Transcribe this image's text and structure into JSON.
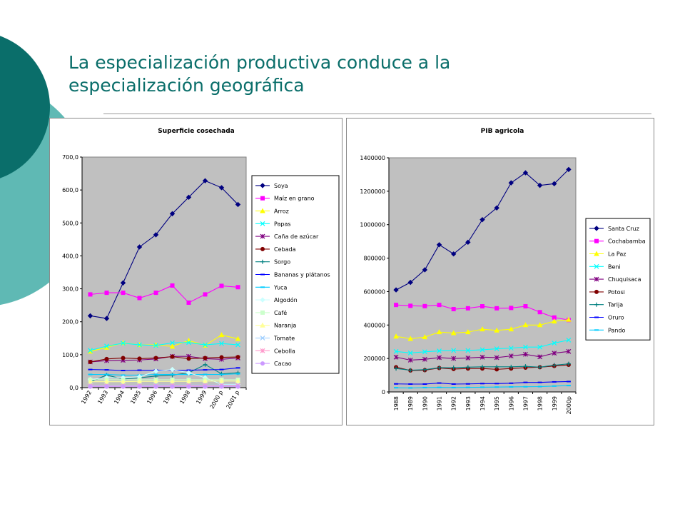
{
  "slide": {
    "title_line1": "La especialización productiva conduce a la",
    "title_line2": "especialización geográfica",
    "accent_color": "#0a6e6a",
    "accent_light_color": "#5fb9b4"
  },
  "chart_data": [
    {
      "type": "line",
      "title": "Superficie cosechada",
      "xlabel": "",
      "ylabel": "",
      "categories": [
        "1992",
        "1993",
        "1994",
        "1995",
        "1996",
        "1997",
        "1998",
        "1999",
        "2000 p",
        "2001 p"
      ],
      "ylim": [
        0,
        700
      ],
      "yticks": [
        "0,0",
        "100,0",
        "200,0",
        "300,0",
        "400,0",
        "500,0",
        "600,0",
        "700,0"
      ],
      "plot_background": "#c0c0c0",
      "grid": false,
      "legend_position": "right",
      "series": [
        {
          "name": "Soya",
          "color": "#000080",
          "marker": "diamond",
          "values": [
            218,
            210,
            318,
            427,
            464,
            528,
            578,
            628,
            607,
            556
          ]
        },
        {
          "name": "Maíz en grano",
          "color": "#ff00ff",
          "marker": "square",
          "values": [
            283,
            288,
            288,
            272,
            288,
            310,
            258,
            283,
            309,
            305
          ]
        },
        {
          "name": "Arroz",
          "color": "#ffff00",
          "marker": "triangle",
          "values": [
            110,
            122,
            136,
            130,
            130,
            125,
            143,
            128,
            160,
            148
          ]
        },
        {
          "name": "Papas",
          "color": "#00ffff",
          "marker": "x",
          "values": [
            113,
            126,
            135,
            130,
            128,
            136,
            137,
            130,
            134,
            130
          ]
        },
        {
          "name": "Caña de azúcar",
          "color": "#800080",
          "marker": "star",
          "values": [
            78,
            82,
            83,
            84,
            87,
            95,
            95,
            88,
            86,
            90
          ]
        },
        {
          "name": "Cebada",
          "color": "#800000",
          "marker": "circle",
          "values": [
            78,
            87,
            90,
            88,
            90,
            94,
            88,
            90,
            92,
            93
          ]
        },
        {
          "name": "Sorgo",
          "color": "#008080",
          "marker": "plus",
          "values": [
            18,
            38,
            26,
            30,
            35,
            38,
            45,
            70,
            42,
            45
          ]
        },
        {
          "name": "Bananas y plátanos",
          "color": "#0000ff",
          "marker": "dash",
          "values": [
            55,
            54,
            52,
            53,
            53,
            53,
            53,
            54,
            55,
            60
          ]
        },
        {
          "name": "Yuca",
          "color": "#00ccff",
          "marker": "dash",
          "values": [
            40,
            40,
            38,
            38,
            40,
            40,
            40,
            40,
            40,
            42
          ]
        },
        {
          "name": "Algodón",
          "color": "#ccffff",
          "marker": "diamond",
          "values": [
            25,
            30,
            30,
            33,
            50,
            55,
            45,
            30,
            10,
            10
          ]
        },
        {
          "name": "Café",
          "color": "#ccffcc",
          "marker": "square",
          "values": [
            24,
            24,
            24,
            24,
            24,
            24,
            24,
            24,
            24,
            24
          ]
        },
        {
          "name": "Naranja",
          "color": "#ffff99",
          "marker": "triangle",
          "values": [
            18,
            18,
            18,
            19,
            19,
            19,
            19,
            20,
            20,
            20
          ]
        },
        {
          "name": "Tomate",
          "color": "#99ccff",
          "marker": "x",
          "values": [
            7,
            7,
            7,
            7,
            8,
            8,
            8,
            8,
            8,
            8
          ]
        },
        {
          "name": "Cebolla",
          "color": "#ff99cc",
          "marker": "star",
          "values": [
            5,
            5,
            5,
            5,
            5,
            6,
            6,
            6,
            6,
            6
          ]
        },
        {
          "name": "Cacao",
          "color": "#cc99ff",
          "marker": "circle",
          "values": [
            3,
            3,
            3,
            3,
            3,
            3,
            3,
            3,
            3,
            3
          ]
        }
      ]
    },
    {
      "type": "line",
      "title": "PIB agricola",
      "xlabel": "",
      "ylabel": "",
      "categories": [
        "1988",
        "1989",
        "1990",
        "1991",
        "1992",
        "1993",
        "1994",
        "1995",
        "1996",
        "1997",
        "1998",
        "1999",
        "2000p"
      ],
      "ylim": [
        0,
        1400000
      ],
      "yticks": [
        "0",
        "200000",
        "400000",
        "600000",
        "800000",
        "1000000",
        "1200000",
        "1400000"
      ],
      "plot_background": "#c0c0c0",
      "grid": false,
      "legend_position": "right",
      "series": [
        {
          "name": "Santa Cruz",
          "color": "#000080",
          "marker": "diamond",
          "values": [
            610000,
            655000,
            730000,
            880000,
            825000,
            895000,
            1030000,
            1100000,
            1250000,
            1310000,
            1235000,
            1245000,
            1330000
          ]
        },
        {
          "name": "Cochabamba",
          "color": "#ff00ff",
          "marker": "square",
          "values": [
            520000,
            515000,
            513000,
            520000,
            495000,
            500000,
            512000,
            500000,
            502000,
            512000,
            477000,
            445000,
            430000
          ]
        },
        {
          "name": "La Paz",
          "color": "#ffff00",
          "marker": "triangle",
          "values": [
            332000,
            318000,
            328000,
            358000,
            352000,
            358000,
            375000,
            368000,
            375000,
            400000,
            400000,
            422000,
            432000
          ]
        },
        {
          "name": "Beni",
          "color": "#00ffff",
          "marker": "x",
          "values": [
            242000,
            233000,
            240000,
            245000,
            248000,
            248000,
            252000,
            258000,
            262000,
            268000,
            268000,
            292000,
            310000
          ]
        },
        {
          "name": "Chuquisaca",
          "color": "#800080",
          "marker": "star",
          "values": [
            208000,
            190000,
            195000,
            205000,
            200000,
            203000,
            208000,
            205000,
            215000,
            225000,
            210000,
            232000,
            242000
          ]
        },
        {
          "name": "Potosi",
          "color": "#800000",
          "marker": "circle",
          "values": [
            148000,
            128000,
            130000,
            143000,
            137000,
            140000,
            140000,
            135000,
            140000,
            145000,
            148000,
            155000,
            162000
          ]
        },
        {
          "name": "Tarija",
          "color": "#008080",
          "marker": "plus",
          "values": [
            140000,
            130000,
            133000,
            145000,
            145000,
            148000,
            150000,
            150000,
            150000,
            153000,
            148000,
            160000,
            168000
          ]
        },
        {
          "name": "Oruro",
          "color": "#0000ff",
          "marker": "dash",
          "values": [
            48000,
            47000,
            47000,
            53000,
            47000,
            48000,
            50000,
            50000,
            52000,
            57000,
            57000,
            60000,
            62000
          ]
        },
        {
          "name": "Pando",
          "color": "#00ccff",
          "marker": "dash",
          "values": [
            25000,
            24000,
            26000,
            27000,
            26000,
            27000,
            28000,
            29000,
            30000,
            31000,
            32000,
            35000,
            38000
          ]
        }
      ]
    }
  ]
}
